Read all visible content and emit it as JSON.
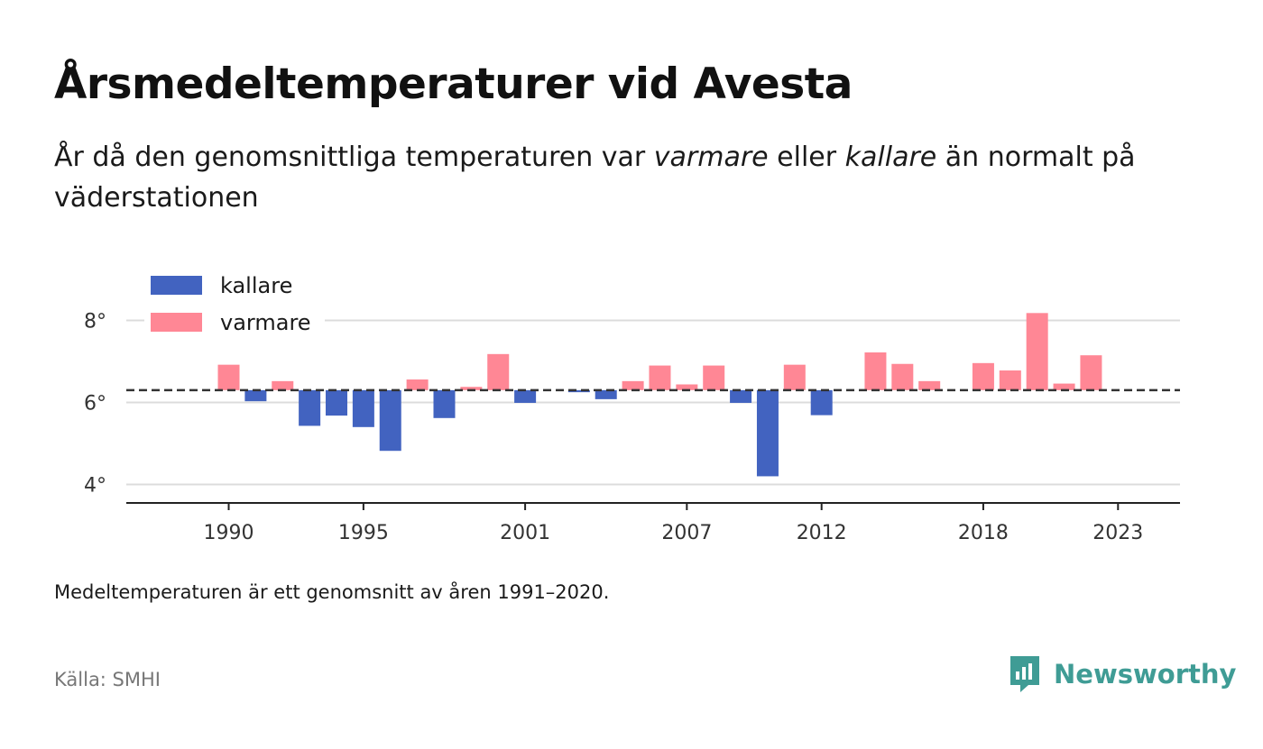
{
  "title": "Årsmedeltemperaturer vid Avesta",
  "subtitle": {
    "part1": "År då den genomsnittliga temperaturen var ",
    "warmer": "varmare",
    "part2": " eller ",
    "colder": "kallare",
    "part3": " än normalt på väderstationen"
  },
  "note": "Medeltemperaturen är ett genomsnitt av åren 1991–2020.",
  "source": "Källa: SMHI",
  "brand": {
    "name": "Newsworthy",
    "icon": "newsworthy-logo-icon",
    "color": "#3f9c95"
  },
  "colors": {
    "colder": "#4263c0",
    "warmer": "#ff8795",
    "axis": "#222222",
    "grid": "#dcdcdc",
    "baseline": "#333333"
  },
  "chart_data": {
    "type": "bar",
    "title": "Årsmedeltemperaturer vid Avesta",
    "baseline": 6.3,
    "baseline_style": "dashed",
    "ylim": [
      3.55,
      9.0
    ],
    "yticks": [
      4,
      6,
      8
    ],
    "ytick_labels": [
      "4°",
      "6°",
      "8°"
    ],
    "xlim": [
      1986.2,
      2025.3
    ],
    "xticks": [
      1990,
      1995,
      2001,
      2007,
      2012,
      2018,
      2023
    ],
    "xtick_labels": [
      "1990",
      "1995",
      "2001",
      "2007",
      "2012",
      "2018",
      "2023"
    ],
    "grid": true,
    "legend": {
      "placement": "top-left",
      "entries": [
        {
          "name": "kallare",
          "color": "#4263c0"
        },
        {
          "name": "varmare",
          "color": "#ff8795"
        }
      ]
    },
    "series": [
      {
        "name": "kallare",
        "color": "#4263c0",
        "points": [
          {
            "x": 1991,
            "y": 6.03
          },
          {
            "x": 1993,
            "y": 5.43
          },
          {
            "x": 1994,
            "y": 5.68
          },
          {
            "x": 1995,
            "y": 5.4
          },
          {
            "x": 1996,
            "y": 4.82
          },
          {
            "x": 1998,
            "y": 5.62
          },
          {
            "x": 2001,
            "y": 5.99
          },
          {
            "x": 2003,
            "y": 6.25
          },
          {
            "x": 2004,
            "y": 6.08
          },
          {
            "x": 2009,
            "y": 5.99
          },
          {
            "x": 2010,
            "y": 4.2
          },
          {
            "x": 2012,
            "y": 5.69
          }
        ]
      },
      {
        "name": "varmare",
        "color": "#ff8795",
        "points": [
          {
            "x": 1990,
            "y": 6.92
          },
          {
            "x": 1992,
            "y": 6.52
          },
          {
            "x": 1997,
            "y": 6.56
          },
          {
            "x": 1999,
            "y": 6.38
          },
          {
            "x": 2000,
            "y": 7.18
          },
          {
            "x": 2005,
            "y": 6.52
          },
          {
            "x": 2006,
            "y": 6.9
          },
          {
            "x": 2007,
            "y": 6.44
          },
          {
            "x": 2008,
            "y": 6.9
          },
          {
            "x": 2011,
            "y": 6.92
          },
          {
            "x": 2014,
            "y": 7.22
          },
          {
            "x": 2015,
            "y": 6.94
          },
          {
            "x": 2016,
            "y": 6.52
          },
          {
            "x": 2018,
            "y": 6.96
          },
          {
            "x": 2019,
            "y": 6.78
          },
          {
            "x": 2020,
            "y": 8.18
          },
          {
            "x": 2021,
            "y": 6.46
          },
          {
            "x": 2022,
            "y": 7.15
          }
        ]
      }
    ]
  }
}
